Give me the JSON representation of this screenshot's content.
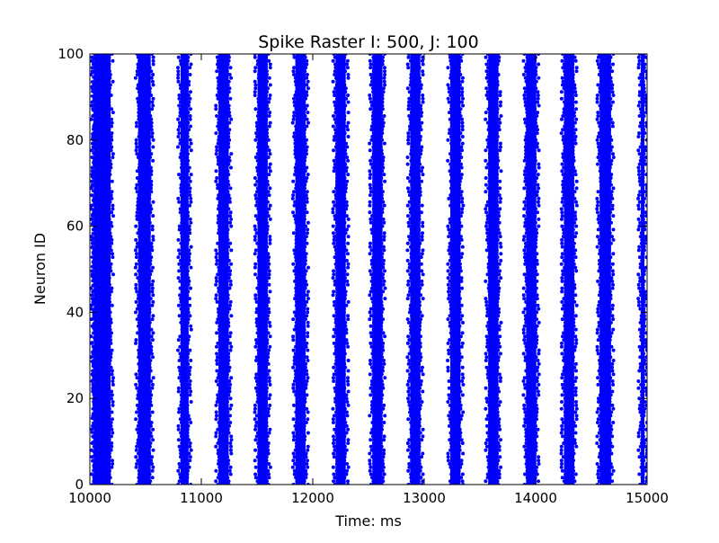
{
  "chart_data": {
    "type": "scatter",
    "title": "Spike Raster I: 500, J: 100",
    "xlabel": "Time: ms",
    "ylabel": "Neuron ID",
    "xlim": [
      10000,
      15000
    ],
    "ylim": [
      0,
      100
    ],
    "xticks": [
      10000,
      11000,
      12000,
      13000,
      14000,
      15000
    ],
    "yticks": [
      0,
      20,
      40,
      60,
      80,
      100
    ],
    "grid": false,
    "marker_color": "#0000ff",
    "neuron_id_range": [
      0,
      100
    ],
    "bursts": [
      {
        "start": 10010,
        "end": 10210
      },
      {
        "start": 10410,
        "end": 10570
      },
      {
        "start": 10790,
        "end": 10910
      },
      {
        "start": 11130,
        "end": 11270
      },
      {
        "start": 11480,
        "end": 11620
      },
      {
        "start": 11820,
        "end": 11960
      },
      {
        "start": 12180,
        "end": 12320
      },
      {
        "start": 12510,
        "end": 12650
      },
      {
        "start": 12850,
        "end": 12990
      },
      {
        "start": 13210,
        "end": 13350
      },
      {
        "start": 13550,
        "end": 13690
      },
      {
        "start": 13890,
        "end": 14030
      },
      {
        "start": 14230,
        "end": 14370
      },
      {
        "start": 14550,
        "end": 14700
      },
      {
        "start": 14920,
        "end": 15000
      }
    ],
    "sparse_column_x": 10030
  }
}
